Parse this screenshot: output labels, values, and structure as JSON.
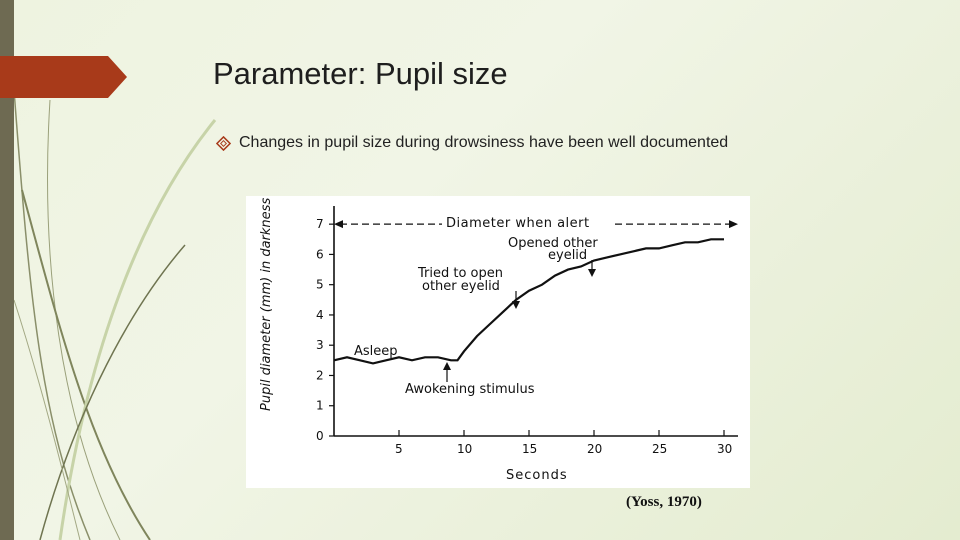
{
  "slide": {
    "title": "Parameter: Pupil size",
    "bullet": "Changes in pupil size during drowsiness have been well documented",
    "citation": "(Yoss, 1970)"
  },
  "colors": {
    "accent": "#a83a1a",
    "left_bar": "#6e6a52",
    "decor_lines": "#8a8f6a"
  },
  "icons": {
    "bullet": "diamond-outline-icon"
  },
  "chart_data": {
    "type": "line",
    "xlabel": "Seconds",
    "ylabel": "Pupil diameter (mm) in darkness",
    "x_ticks": [
      5,
      10,
      15,
      20,
      25,
      30
    ],
    "y_ticks": [
      0,
      1,
      2,
      3,
      4,
      5,
      6,
      7
    ],
    "xlim": [
      0,
      30
    ],
    "ylim": [
      0,
      7.6
    ],
    "grid": false,
    "reference_line": {
      "label": "Diameter when alert",
      "y": 7
    },
    "series": [
      {
        "x": [
          0,
          1,
          2,
          3,
          4,
          5,
          6,
          7,
          8,
          9,
          9.5,
          10,
          11,
          12,
          13,
          14,
          15,
          16,
          17,
          18,
          19,
          20,
          21,
          22,
          23,
          24,
          25,
          26,
          27,
          28,
          29,
          30
        ],
        "y": [
          2.5,
          2.6,
          2.5,
          2.4,
          2.5,
          2.6,
          2.5,
          2.6,
          2.6,
          2.5,
          2.5,
          2.8,
          3.3,
          3.7,
          4.1,
          4.5,
          4.8,
          5.0,
          5.3,
          5.5,
          5.6,
          5.8,
          5.9,
          6.0,
          6.1,
          6.2,
          6.2,
          6.3,
          6.4,
          6.4,
          6.5,
          6.5
        ]
      }
    ],
    "annotations": [
      {
        "text": "Asleep",
        "x": 3,
        "y": 2.9
      },
      {
        "text": "Awokening stimulus",
        "x": 9.5,
        "y": 2.5
      },
      {
        "text": "Tried to open",
        "x": 13,
        "y": 4.7
      },
      {
        "text": "other eyelid",
        "x": 13,
        "y": 4.7
      },
      {
        "text": "Opened other",
        "x": 19,
        "y": 5.7
      },
      {
        "text": "eyelid",
        "x": 19,
        "y": 5.7
      }
    ]
  }
}
